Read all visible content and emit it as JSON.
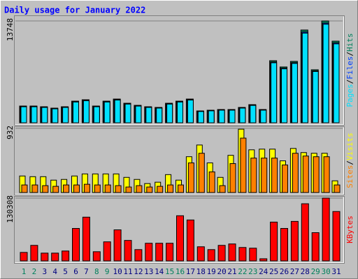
{
  "chart_data": [
    {
      "type": "bar",
      "title": "Daily usage for January 2022",
      "ylim": [
        0,
        13748
      ],
      "yticks": [
        13748
      ],
      "legend_separator": "/",
      "series": [
        {
          "name": "Hits",
          "color": "#00805c",
          "values": [
            2260,
            2260,
            2165,
            1976,
            2165,
            2919,
            3107,
            2260,
            2919,
            3202,
            2636,
            2354,
            2165,
            2071,
            2636,
            2919,
            3202,
            1600,
            1695,
            1789,
            1789,
            2071,
            2448,
            1789,
            8381,
            7534,
            8287,
            12524,
            7157,
            13748,
            11018
          ]
        },
        {
          "name": "Files",
          "color": "#0040ff",
          "values": [
            2200,
            2200,
            2100,
            1920,
            2100,
            2850,
            3030,
            2200,
            2850,
            3120,
            2570,
            2290,
            2100,
            2010,
            2570,
            2850,
            3120,
            1550,
            1640,
            1730,
            1730,
            2010,
            2380,
            1730,
            8200,
            7370,
            8110,
            12250,
            7000,
            13450,
            10780
          ]
        },
        {
          "name": "Pages",
          "color": "#00e0ff",
          "values": [
            2160,
            2160,
            2070,
            1880,
            2070,
            2800,
            2980,
            2160,
            2800,
            3070,
            2520,
            2250,
            2070,
            1980,
            2520,
            2800,
            3070,
            1520,
            1610,
            1700,
            1700,
            1980,
            2340,
            1700,
            8100,
            7280,
            8010,
            12100,
            6920,
            13300,
            10650
          ]
        }
      ]
    },
    {
      "type": "bar",
      "ylim": [
        0,
        932
      ],
      "yticks": [
        932
      ],
      "legend_separator": "/",
      "series": [
        {
          "name": "Visits",
          "color": "#ffff00",
          "values": [
            240,
            230,
            230,
            180,
            190,
            240,
            270,
            270,
            270,
            270,
            220,
            190,
            130,
            150,
            260,
            180,
            520,
            690,
            430,
            220,
            540,
            920,
            620,
            630,
            630,
            460,
            640,
            580,
            570,
            570,
            170
          ]
        },
        {
          "name": "Sites",
          "color": "#ff8000",
          "values": [
            110,
            110,
            100,
            90,
            110,
            110,
            120,
            110,
            110,
            100,
            80,
            100,
            80,
            90,
            110,
            110,
            430,
            570,
            300,
            100,
            420,
            790,
            500,
            500,
            500,
            400,
            570,
            530,
            520,
            520,
            110
          ]
        }
      ]
    },
    {
      "type": "bar",
      "ylim": [
        0,
        130308
      ],
      "yticks": [
        130308
      ],
      "categories": [
        "1",
        "2",
        "3",
        "4",
        "5",
        "6",
        "7",
        "8",
        "9",
        "10",
        "11",
        "12",
        "13",
        "14",
        "15",
        "16",
        "17",
        "18",
        "19",
        "20",
        "21",
        "22",
        "23",
        "24",
        "25",
        "26",
        "27",
        "28",
        "29",
        "30",
        "31"
      ],
      "category_colors": [
        "#00805c",
        "#00805c",
        "#000080",
        "#000080",
        "#000080",
        "#000080",
        "#000080",
        "#00805c",
        "#00805c",
        "#000080",
        "#000080",
        "#000080",
        "#000080",
        "#000080",
        "#00805c",
        "#00805c",
        "#000080",
        "#000080",
        "#000080",
        "#000080",
        "#000080",
        "#00805c",
        "#00805c",
        "#000080",
        "#000080",
        "#000080",
        "#000080",
        "#000080",
        "#00805c",
        "#00805c",
        "#000080"
      ],
      "series": [
        {
          "name": "KBytes",
          "color": "#ff0000",
          "values": [
            17566,
            32200,
            16100,
            16100,
            20496,
            67340,
            90770,
            19032,
            39528,
            64416,
            42456,
            23424,
            36600,
            36600,
            36600,
            93696,
            84912,
            29280,
            23424,
            32208,
            35136,
            27816,
            26352,
            4392,
            80520,
            67344,
            81984,
            118584,
            58560,
            130308,
            102480
          ]
        }
      ]
    }
  ]
}
